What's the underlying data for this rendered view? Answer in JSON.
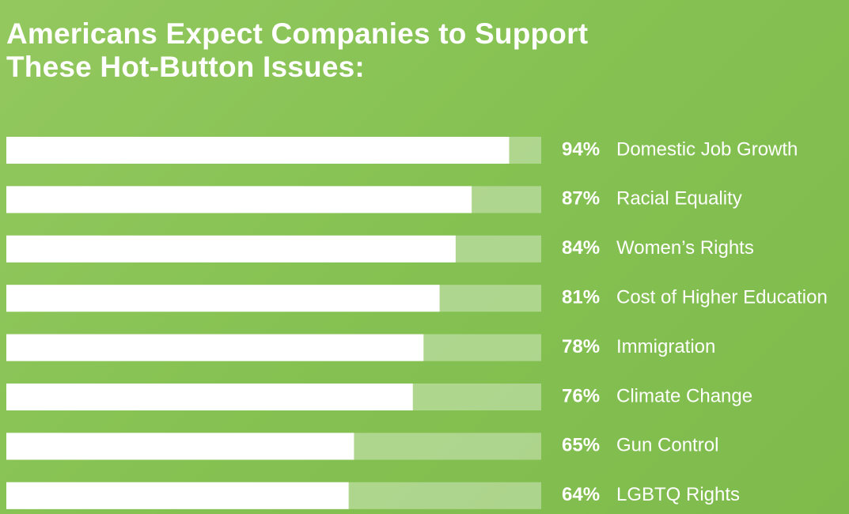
{
  "chart_data": {
    "type": "bar",
    "title": "Americans Expect Companies to Support These Hot-Button Issues:",
    "categories": [
      "Domestic Job Growth",
      "Racial Equality",
      "Women’s Rights",
      "Cost of Higher Education",
      "Immigration",
      "Climate Change",
      "Gun Control",
      "LGBTQ Rights"
    ],
    "values": [
      94,
      87,
      84,
      81,
      78,
      76,
      65,
      64
    ],
    "value_labels": [
      "94%",
      "87%",
      "84%",
      "81%",
      "78%",
      "76%",
      "65%",
      "64%"
    ],
    "color": "#ffffff",
    "xlim": [
      0,
      100
    ]
  }
}
